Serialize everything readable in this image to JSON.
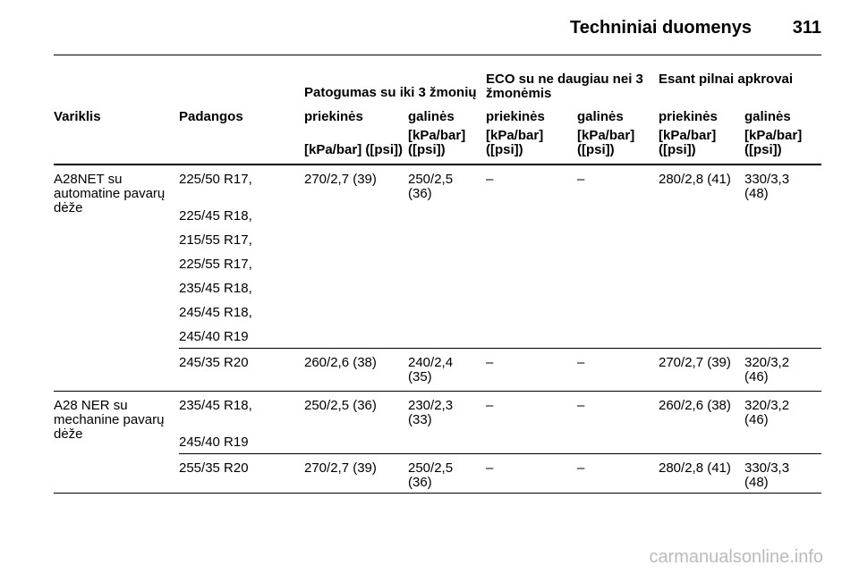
{
  "header": {
    "title": "Techniniai duomenys",
    "page_number": "311"
  },
  "table": {
    "group_headers": [
      "Patogumas su iki 3 žmonių",
      "ECO su ne daugiau nei 3 žmonėmis",
      "Esant pilnai apkrovai"
    ],
    "columns": [
      "Variklis",
      "Padangos",
      "priekinės",
      "galinės",
      "priekinės",
      "galinės",
      "priekinės",
      "galinės"
    ],
    "units": [
      "[kPa/bar] ([psi])",
      "[kPa/bar] ([psi])",
      "[kPa/bar] ([psi])",
      "[kPa/bar] ([psi])",
      "[kPa/bar] ([psi])",
      "[kPa/bar] ([psi])"
    ],
    "rows": [
      {
        "engine": "A28NET su automatine pavarų dėže",
        "tires": [
          "225/50 R17,",
          "225/45 R18,",
          "215/55 R17,",
          "225/55 R17,",
          "235/45 R18,",
          "245/45 R18,",
          "245/40 R19"
        ],
        "values": [
          "270/2,7 (39)",
          "250/2,5 (36)",
          "–",
          "–",
          "280/2,8 (41)",
          "330/3,3 (48)"
        ]
      },
      {
        "tires": [
          "245/35 R20"
        ],
        "values": [
          "260/2,6 (38)",
          "240/2,4 (35)",
          "–",
          "–",
          "270/2,7 (39)",
          "320/3,2 (46)"
        ]
      },
      {
        "engine": "A28 NER su mechanine pavarų dėže",
        "tires": [
          "235/45 R18,",
          "245/40 R19"
        ],
        "values": [
          "250/2,5 (36)",
          "230/2,3 (33)",
          "–",
          "–",
          "260/2,6 (38)",
          "320/3,2 (46)"
        ]
      },
      {
        "tires": [
          "255/35 R20"
        ],
        "values": [
          "270/2,7 (39)",
          "250/2,5 (36)",
          "–",
          "–",
          "280/2,8 (41)",
          "330/3,3 (48)"
        ]
      }
    ]
  },
  "footer": {
    "watermark": "carmanualsonline.info"
  }
}
